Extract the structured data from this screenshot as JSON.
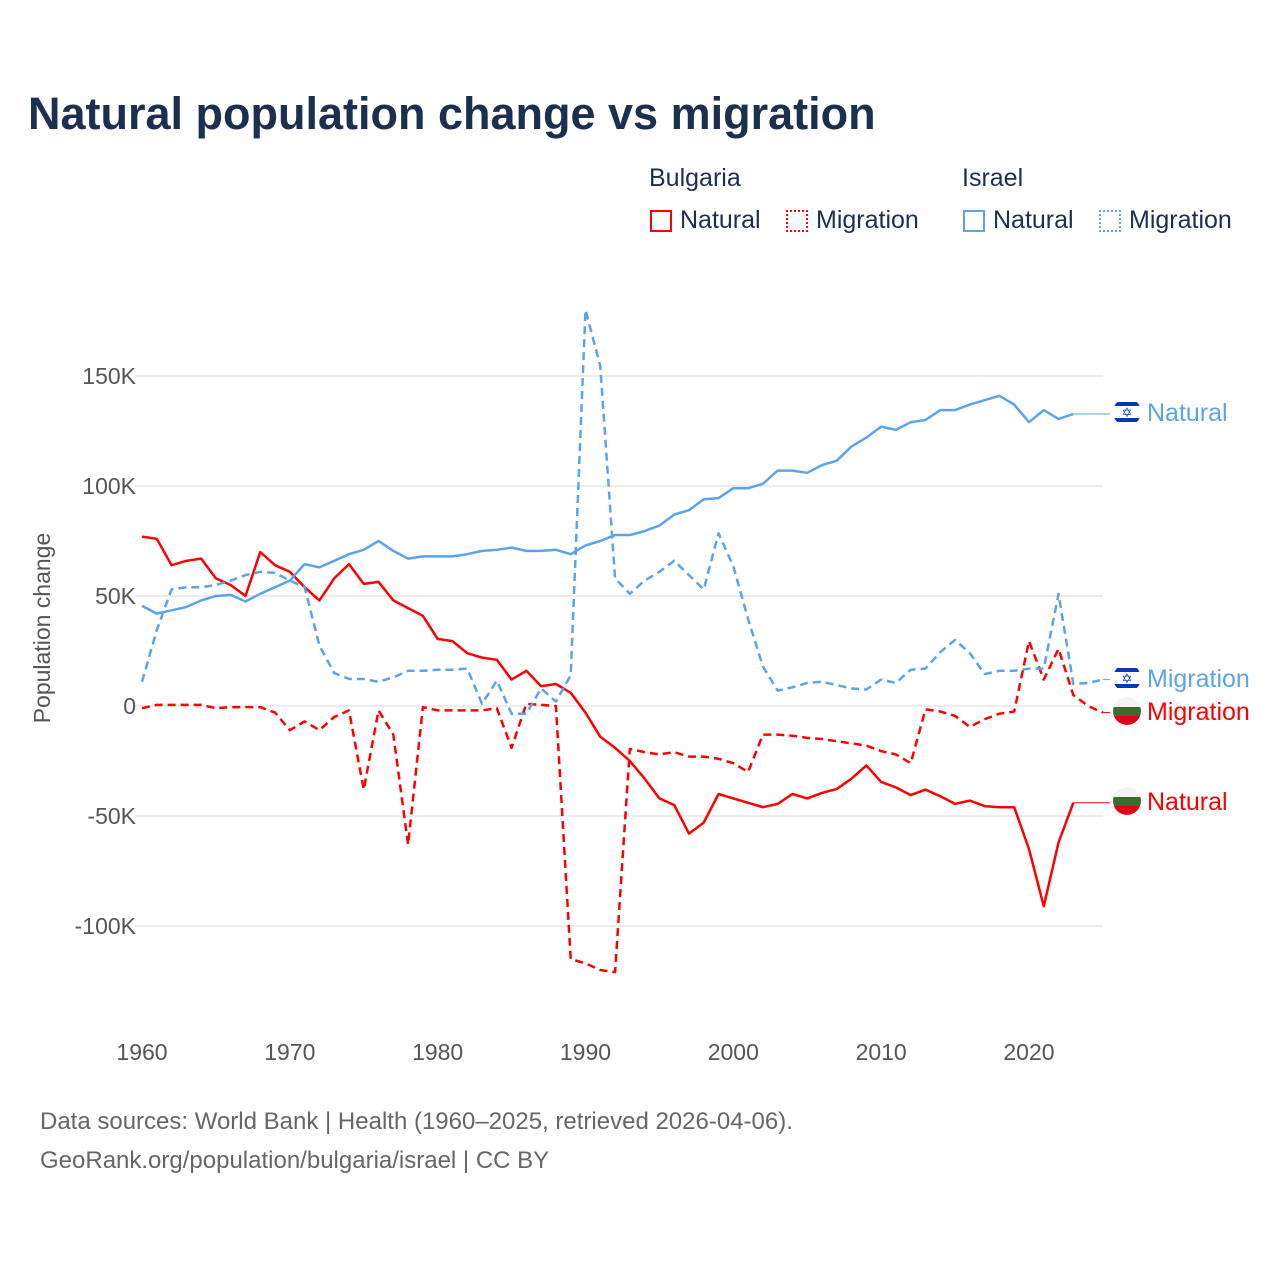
{
  "title": "Natural population change vs migration",
  "legend": {
    "groups": [
      {
        "name": "Bulgaria",
        "items": [
          "Natural",
          "Migration"
        ]
      },
      {
        "name": "Israel",
        "items": [
          "Natural",
          "Migration"
        ]
      }
    ]
  },
  "colors": {
    "bulgaria": "#ff0000",
    "israel": "#5ba4ea",
    "title": "#1b2f50"
  },
  "footer": {
    "line1": "Data sources: World Bank | Health (1960–2025, retrieved 2026-04-06).",
    "line2": "GeoRank.org/population/bulgaria/israel | CC BY"
  },
  "chart_data": {
    "type": "line",
    "title": "Natural population change vs migration",
    "xlabel": "",
    "ylabel": "Population change",
    "xlim": [
      1960,
      2025
    ],
    "ylim": [
      -130000,
      185000
    ],
    "x_ticks": [
      1960,
      1970,
      1980,
      1990,
      2000,
      2010,
      2020
    ],
    "x_tick_labels": [
      "1960",
      "1970",
      "1980",
      "1990",
      "2000",
      "2010",
      "2020"
    ],
    "y_ticks": [
      -100000,
      -50000,
      0,
      50000,
      100000,
      150000
    ],
    "y_tick_labels": [
      "-100K",
      "-50K",
      "0",
      "50K",
      "100K",
      "150K"
    ],
    "grid": true,
    "legend_position": "top-right",
    "x_start": 1960,
    "series": [
      {
        "name": "Bulgaria Natural",
        "country": "Bulgaria",
        "kind": "Natural",
        "color": "#ff0000",
        "dashed": false,
        "end_label": "Natural",
        "values_k": [
          77,
          76,
          64,
          66,
          67,
          58,
          55,
          50,
          70,
          64,
          61,
          54,
          48,
          58,
          64.5,
          55.5,
          56.4,
          48,
          44.5,
          41,
          30.5,
          29.5,
          24,
          22,
          21,
          12,
          16,
          9,
          10,
          6,
          -3,
          -14,
          -19,
          -25,
          -33,
          -42,
          -45,
          -58,
          -53,
          -40,
          -42,
          -44,
          -46,
          -44.5,
          -40,
          -42,
          -39.5,
          -37.7,
          -33,
          -27,
          -34.5,
          -37,
          -40.5,
          -38,
          -41,
          -44.5,
          -43,
          -45.5,
          -46,
          -46,
          -65,
          -91,
          -62,
          -44
        ]
      },
      {
        "name": "Bulgaria Migration",
        "country": "Bulgaria",
        "kind": "Migration",
        "color": "#ff0000",
        "dashed": true,
        "end_label": "Migration",
        "values_k": [
          -1,
          0.5,
          0.5,
          0.5,
          0.5,
          -1,
          -0.5,
          -0.5,
          -0.5,
          -3,
          -11,
          -7,
          -11,
          -5,
          -2,
          -38,
          -2,
          -13,
          -63,
          -0.5,
          -2,
          -2,
          -2,
          -2,
          -1,
          -19,
          1,
          0.5,
          0,
          -115,
          -117,
          -120,
          -121,
          -19.5,
          -21,
          -22,
          -21,
          -23,
          -23,
          -24,
          -26,
          -30,
          -13,
          -13,
          -13.5,
          -14.5,
          -15,
          -16,
          -17,
          -18,
          -20.5,
          -22,
          -26,
          -1.5,
          -2.5,
          -4.5,
          -9.5,
          -6,
          -3.5,
          -2.5,
          29.5,
          12,
          26,
          5,
          0,
          -3
        ]
      },
      {
        "name": "Israel Natural",
        "country": "Israel",
        "kind": "Natural",
        "color": "#5ba4ea",
        "dashed": false,
        "end_label": "Natural",
        "values_k": [
          45.5,
          42,
          43.5,
          45,
          48,
          50,
          50.5,
          47.5,
          51,
          54,
          57,
          64.5,
          63,
          66,
          69,
          71,
          75,
          70.5,
          67,
          68,
          68,
          68,
          69,
          70.5,
          71,
          72,
          70.5,
          70.5,
          71,
          69,
          73,
          75,
          77.7,
          77.7,
          79.5,
          82,
          87,
          89,
          94,
          94.5,
          99,
          99,
          101,
          107,
          107,
          106,
          109.5,
          111.5,
          118,
          122,
          127,
          125.5,
          129,
          130,
          134.5,
          134.5,
          137,
          139,
          141,
          137,
          129,
          134.5,
          130.5,
          132.7
        ]
      },
      {
        "name": "Israel Migration",
        "country": "Israel",
        "kind": "Migration",
        "color": "#5ba4ea",
        "dashed": true,
        "end_label": "Migration",
        "values_k": [
          11,
          34.5,
          53,
          54,
          54,
          55,
          57,
          59.5,
          61,
          60.5,
          57,
          54,
          27.5,
          15,
          12.3,
          12.3,
          11,
          13,
          16,
          16,
          16.5,
          16.5,
          17,
          1,
          11.5,
          -3.5,
          -3.5,
          8,
          2,
          14,
          180,
          154.5,
          58,
          51,
          57,
          61,
          66,
          59.5,
          53,
          78.5,
          63.5,
          39.5,
          18,
          7,
          8.5,
          10.5,
          11,
          9.5,
          8,
          7.5,
          12,
          10.5,
          16.5,
          17,
          24.5,
          30,
          24,
          14.5,
          16,
          16,
          17,
          17,
          51,
          10,
          10.5,
          12
        ]
      }
    ]
  }
}
